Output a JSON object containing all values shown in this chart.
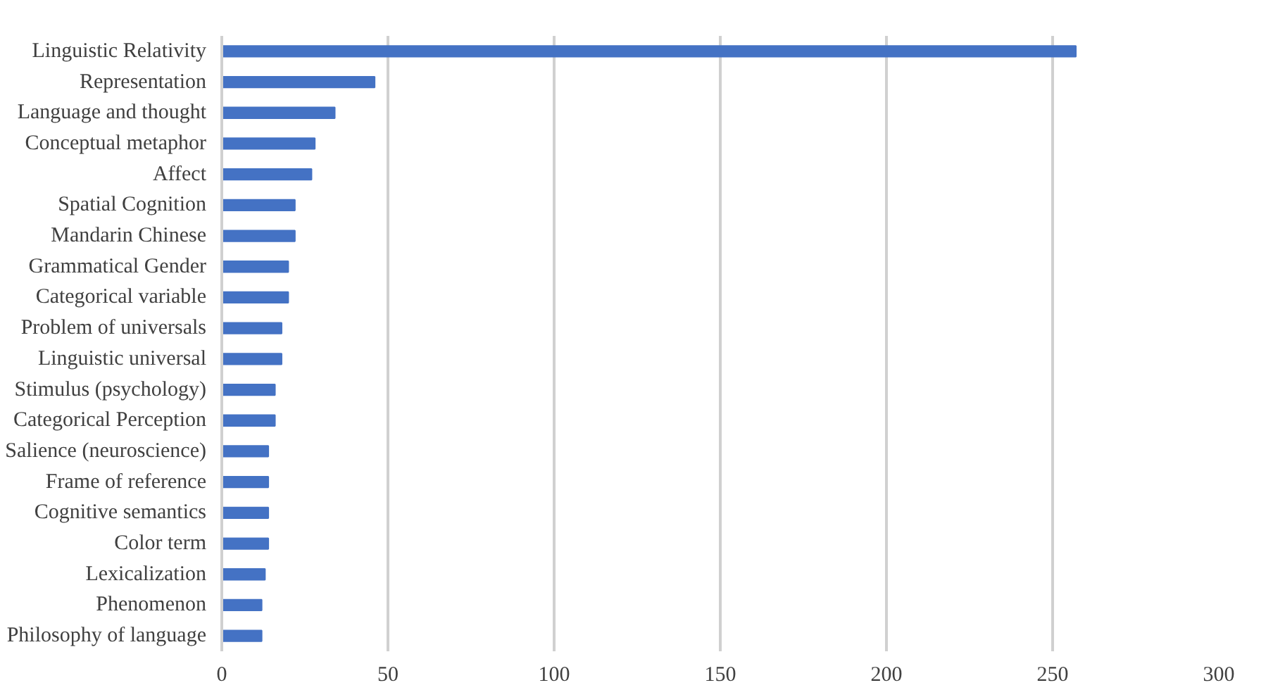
{
  "chart_data": {
    "type": "bar",
    "orientation": "horizontal",
    "categories": [
      "Linguistic Relativity",
      "Representation",
      "Language and thought",
      "Conceptual metaphor",
      "Affect",
      "Spatial Cognition",
      "Mandarin Chinese",
      "Grammatical Gender",
      "Categorical variable",
      "Problem of universals",
      "Linguistic universal",
      "Stimulus (psychology)",
      "Categorical Perception",
      "Salience (neuroscience)",
      "Frame of reference",
      "Cognitive semantics",
      "Color term",
      "Lexicalization",
      "Phenomenon",
      "Philosophy of language"
    ],
    "values": [
      257,
      46,
      34,
      28,
      27,
      22,
      22,
      20,
      20,
      18,
      18,
      16,
      16,
      14,
      14,
      14,
      14,
      13,
      12,
      12
    ],
    "color": "#4472c4",
    "xlim": [
      0,
      300
    ],
    "xticks": [
      0,
      50,
      100,
      150,
      200,
      250,
      300
    ],
    "grid": "x"
  }
}
